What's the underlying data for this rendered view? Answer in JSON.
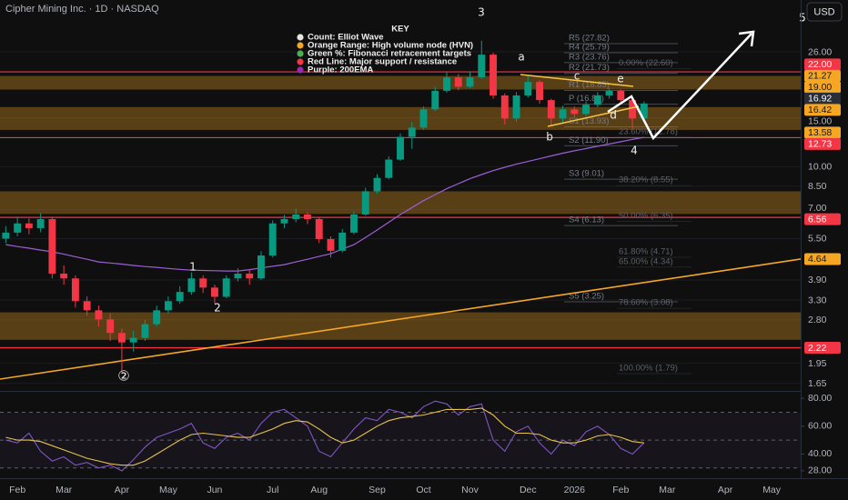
{
  "chart_data": [
    {
      "type": "candlestick",
      "title": "Cipher Mining Inc. · 1D · NASDAQ",
      "currency_button": "USD",
      "log_scale": true,
      "grid": true,
      "up_color": "#089981",
      "down_color": "#f23645",
      "ylim": [
        1.55,
        40
      ],
      "yticks": [
        {
          "value": 26,
          "label": "26.00"
        },
        {
          "value": 15,
          "label": "15.00"
        },
        {
          "value": 10,
          "label": "10.00"
        },
        {
          "value": 8.5,
          "label": "8.50"
        },
        {
          "value": 7,
          "label": "7.00"
        },
        {
          "value": 5.5,
          "label": "5.50"
        },
        {
          "value": 3.9,
          "label": "3.90"
        },
        {
          "value": 3.3,
          "label": "3.30"
        },
        {
          "value": 2.8,
          "label": "2.80"
        },
        {
          "value": 1.95,
          "label": "1.95"
        },
        {
          "value": 1.65,
          "label": "1.65"
        }
      ],
      "categories": [
        null,
        "Feb",
        null,
        null,
        null,
        "Mar",
        null,
        null,
        null,
        null,
        "Apr",
        null,
        null,
        null,
        "May",
        null,
        null,
        null,
        "Jun",
        null,
        null,
        null,
        null,
        "Jul",
        null,
        null,
        null,
        "Aug",
        null,
        null,
        null,
        null,
        "Sep",
        null,
        null,
        null,
        "Oct",
        null,
        null,
        null,
        "Nov",
        null,
        null,
        null,
        null,
        "Dec",
        null,
        null,
        null,
        "2026",
        null,
        null,
        null,
        "Feb",
        null,
        null,
        null,
        "Mar",
        null,
        null,
        null,
        null,
        "Apr",
        null,
        null,
        null,
        "May",
        null,
        null
      ],
      "open": [
        5.5,
        5.78,
        6.24,
        6.0,
        6.47,
        4.11,
        3.95,
        3.27,
        3.03,
        2.81,
        2.51,
        2.32,
        2.41,
        2.7,
        3.03,
        3.27,
        3.53,
        3.95,
        3.66,
        3.39,
        3.95,
        4.11,
        3.95,
        4.78,
        6.24,
        6.47,
        6.72,
        6.47,
        5.48,
        4.97,
        5.78,
        6.72,
        8.15,
        9.11,
        10.61,
        12.82,
        13.84,
        16.11,
        18.8,
        21.03,
        19.45,
        21.03,
        25.39,
        18.09,
        14.93,
        18.09,
        20.23,
        17.4,
        14.93,
        16.11,
        15.51,
        16.75,
        18.09,
        18.8,
        17.4,
        14.93,
        null,
        null,
        null,
        null,
        null,
        null,
        null,
        null,
        null,
        null,
        null,
        null,
        null
      ],
      "high": [
        6.1,
        6.6,
        6.5,
        6.8,
        6.6,
        4.4,
        4.05,
        3.4,
        3.15,
        2.95,
        2.6,
        2.55,
        2.8,
        3.15,
        3.4,
        3.7,
        4.15,
        4.05,
        3.75,
        4.05,
        4.3,
        4.25,
        4.95,
        6.4,
        6.7,
        7.05,
        6.85,
        6.55,
        5.6,
        5.95,
        6.9,
        8.4,
        9.4,
        10.9,
        13.2,
        14.5,
        16.5,
        19.4,
        22.0,
        21.6,
        22.1,
        28.5,
        25.8,
        18.4,
        18.6,
        21.2,
        20.5,
        17.6,
        16.6,
        16.5,
        17.2,
        18.6,
        19.2,
        19.0,
        17.6,
        17.2,
        null,
        null,
        null,
        null,
        null,
        null,
        null,
        null,
        null,
        null,
        null,
        null,
        null
      ],
      "low": [
        5.3,
        5.6,
        5.7,
        5.8,
        3.95,
        3.75,
        3.1,
        2.9,
        2.65,
        2.35,
        1.79,
        2.15,
        2.35,
        2.65,
        2.95,
        3.2,
        3.45,
        3.5,
        3.2,
        3.35,
        3.85,
        3.75,
        3.9,
        4.7,
        6.0,
        6.3,
        6.2,
        5.3,
        4.7,
        4.9,
        5.7,
        6.65,
        8.0,
        9.0,
        10.5,
        11.6,
        13.6,
        15.9,
        18.5,
        18.9,
        19.2,
        20.8,
        17.6,
        14.2,
        14.5,
        17.8,
        16.9,
        14.0,
        14.4,
        15.0,
        15.2,
        16.4,
        17.6,
        16.9,
        13.7,
        14.6,
        null,
        null,
        null,
        null,
        null,
        null,
        null,
        null,
        null,
        null,
        null,
        null,
        null
      ],
      "close": [
        5.78,
        6.24,
        6.0,
        6.47,
        4.11,
        3.95,
        3.27,
        3.03,
        2.81,
        2.51,
        2.32,
        2.41,
        2.7,
        3.03,
        3.27,
        3.53,
        3.95,
        3.66,
        3.39,
        3.95,
        4.11,
        3.95,
        4.78,
        6.24,
        6.47,
        6.72,
        6.47,
        5.48,
        4.97,
        5.78,
        6.72,
        8.15,
        9.11,
        10.61,
        12.82,
        13.84,
        16.11,
        18.8,
        21.03,
        19.45,
        21.03,
        25.39,
        18.09,
        14.93,
        18.09,
        20.23,
        17.4,
        14.93,
        16.11,
        15.51,
        16.75,
        18.09,
        18.8,
        17.4,
        14.93,
        16.92,
        null,
        null,
        null,
        null,
        null,
        null,
        null,
        null,
        null,
        null,
        null,
        null,
        null
      ],
      "ema200": {
        "color": "#9c5fd6",
        "values": [
          5.23,
          5.15,
          5.08,
          5.0,
          4.93,
          4.83,
          4.73,
          4.63,
          4.53,
          4.49,
          4.45,
          4.4,
          4.36,
          4.33,
          4.29,
          4.26,
          4.23,
          4.22,
          4.21,
          4.2,
          4.2,
          4.25,
          4.31,
          4.37,
          4.43,
          4.53,
          4.63,
          4.74,
          4.85,
          5.04,
          5.23,
          5.55,
          5.91,
          6.3,
          6.72,
          7.12,
          7.54,
          7.93,
          8.33,
          8.69,
          9.05,
          9.37,
          9.68,
          9.95,
          10.21,
          10.45,
          10.69,
          10.94,
          11.19,
          11.41,
          11.63,
          11.85,
          12.08,
          12.31,
          12.55,
          12.75,
          null,
          null,
          null,
          null,
          null,
          null,
          null,
          null,
          null,
          null,
          null,
          null,
          null
        ]
      },
      "support_resistance": {
        "color": "#f23645",
        "levels": [
          {
            "value": 22,
            "label": "22.00"
          },
          12.73,
          6.56,
          2.22
        ]
      },
      "hvn_zones": {
        "color": "#f5a623",
        "zones": [
          {
            "low": {
              "value": 19,
              "label": "19.00"
            },
            "high": 21.27,
            "axis_label": true
          },
          {
            "low": 13.58,
            "high": 16.42,
            "axis_label": true
          },
          {
            "low": 6.75,
            "high": 8.15,
            "axis_label": false
          },
          {
            "low": 2.37,
            "high": 2.98,
            "axis_label": false
          }
        ]
      },
      "trendline": {
        "color": "#f5a623",
        "start": 1.71,
        "end": 4.64
      },
      "pivots": {
        "color": "#787b86",
        "levels": [
          {
            "value": 27.82,
            "label": "R5 (27.82)"
          },
          {
            "value": 25.79,
            "label": "R4 (25.79)"
          },
          {
            "value": 23.76,
            "label": "R3 (23.76)"
          },
          {
            "value": 21.73,
            "label": "R2 (21.73)"
          },
          {
            "value": 18.85,
            "label": "R1 (18.85)"
          },
          {
            "value": 16.81,
            "label": "P (16.81)"
          },
          {
            "value": 13.93,
            "label": "S1 (13.93)"
          },
          {
            "value": 11.9,
            "label": "S2 (11.90)"
          },
          {
            "value": 9.01,
            "label": "S3 (9.01)"
          },
          {
            "value": 6.13,
            "label": "S4 (6.13)"
          },
          {
            "value": 3.25,
            "label": "S5 (3.25)"
          }
        ]
      },
      "fibonacci": {
        "color": "#5d606b",
        "levels": [
          {
            "value": 22.6,
            "label": "0.00% (22.60)"
          },
          {
            "value": 12.78,
            "label": "23.60% (12.78)"
          },
          {
            "value": 8.55,
            "label": "38.20% (8.55)"
          },
          {
            "value": 6.35,
            "label": "50.00% (6.35)"
          },
          {
            "value": 4.71,
            "label": "61.80% (4.71)"
          },
          {
            "value": 4.34,
            "label": "65.00% (4.34)"
          },
          {
            "value": 3.08,
            "label": "78.60% (3.08)"
          },
          {
            "value": 1.79,
            "label": "100.00% (1.79)"
          }
        ]
      },
      "key": {
        "title": "KEY",
        "items": [
          {
            "text": "Count: Elliot Wave",
            "color": "#e6e6e6"
          },
          {
            "text": "Orange Range: High volume node (HVN)",
            "color": "#f5a623"
          },
          {
            "text": "Green %: Fibonacci retracement targets",
            "color": "#4caf50"
          },
          {
            "text": "Red Line: Major support / resistance",
            "color": "#f23645"
          },
          {
            "text": "Purple: 200EMA",
            "color": "#9c27b0"
          }
        ]
      },
      "wave_labels": [
        "3",
        "1",
        "2",
        "②",
        "a",
        "b",
        "c",
        "d",
        "e",
        "4",
        "5"
      ]
    },
    {
      "type": "line",
      "ylim": [
        24,
        84
      ],
      "yticks": [
        {
          "value": 80,
          "label": "80.00"
        },
        {
          "value": 60,
          "label": "60.00"
        },
        {
          "value": 40,
          "label": "40.00"
        },
        {
          "value": 28,
          "label": "28.00"
        }
      ],
      "guide_lines": [
        70,
        50,
        30
      ],
      "series": [
        {
          "color": "#7e57c2",
          "values": [
            50,
            48,
            55,
            42,
            35,
            38,
            32,
            34,
            30,
            32,
            28,
            36,
            45,
            52,
            55,
            58,
            62,
            48,
            44,
            52,
            55,
            50,
            62,
            70,
            72,
            66,
            60,
            42,
            38,
            48,
            58,
            66,
            64,
            72,
            70,
            66,
            74,
            78,
            76,
            68,
            74,
            76,
            50,
            42,
            56,
            60,
            48,
            40,
            50,
            46,
            56,
            60,
            54,
            44,
            40,
            48,
            null,
            null,
            null,
            null,
            null,
            null,
            null,
            null,
            null,
            null,
            null,
            null,
            null
          ]
        },
        {
          "color": "#e6c34a",
          "values": [
            52,
            50,
            50,
            49,
            46,
            43,
            40,
            37,
            35,
            33,
            32,
            32,
            35,
            40,
            45,
            50,
            54,
            55,
            54,
            53,
            52,
            52,
            55,
            58,
            62,
            64,
            63,
            58,
            52,
            48,
            50,
            55,
            60,
            64,
            66,
            67,
            68,
            70,
            72,
            72,
            72,
            73,
            68,
            60,
            55,
            55,
            54,
            50,
            48,
            48,
            50,
            53,
            54,
            52,
            49,
            48,
            null,
            null,
            null,
            null,
            null,
            null,
            null,
            null,
            null,
            null,
            null,
            null,
            null
          ]
        }
      ]
    }
  ]
}
